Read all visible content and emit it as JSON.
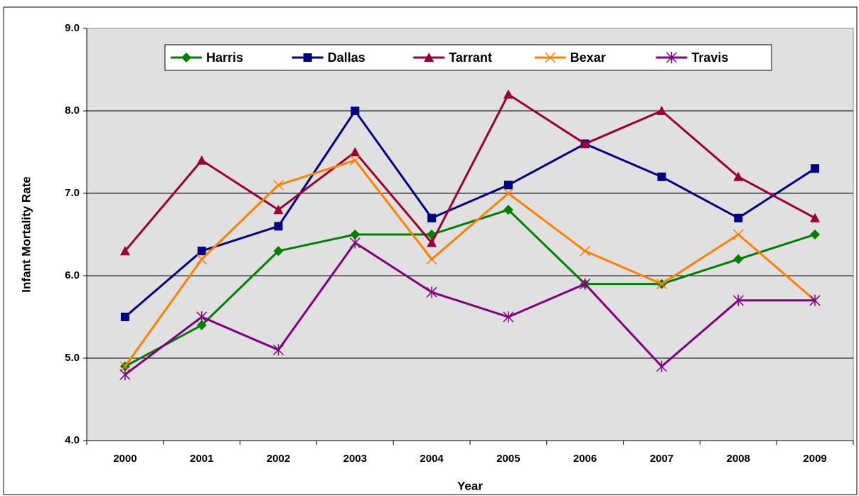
{
  "chart_data": {
    "type": "line",
    "x_label": "Year",
    "y_label": "Infant Mortality Rate",
    "categories": [
      "2000",
      "2001",
      "2002",
      "2003",
      "2004",
      "2005",
      "2006",
      "2007",
      "2008",
      "2009"
    ],
    "series": [
      {
        "name": "Harris",
        "color": "#008000",
        "marker": "diamond",
        "values": [
          4.9,
          5.4,
          6.3,
          6.5,
          6.5,
          6.8,
          5.9,
          5.9,
          6.2,
          6.5
        ]
      },
      {
        "name": "Dallas",
        "color": "#000080",
        "marker": "square",
        "values": [
          5.5,
          6.3,
          6.6,
          8.0,
          6.7,
          7.1,
          7.6,
          7.2,
          6.7,
          7.3
        ]
      },
      {
        "name": "Tarrant",
        "color": "#990033",
        "marker": "triangle",
        "values": [
          6.3,
          7.4,
          6.8,
          7.5,
          6.4,
          8.2,
          7.6,
          8.0,
          7.2,
          6.7
        ]
      },
      {
        "name": "Bexar",
        "color": "#ff8000",
        "marker": "x",
        "values": [
          4.9,
          6.2,
          7.1,
          7.4,
          6.2,
          7.0,
          6.3,
          5.9,
          6.5,
          5.7
        ]
      },
      {
        "name": "Travis",
        "color": "#800080",
        "marker": "star",
        "values": [
          4.8,
          5.5,
          5.1,
          6.4,
          5.8,
          5.5,
          5.9,
          4.9,
          5.7,
          5.7
        ]
      }
    ],
    "ylim": [
      4,
      9
    ],
    "yticks": [
      {
        "value": 4,
        "label": "4.0"
      },
      {
        "value": 5,
        "label": "5.0"
      },
      {
        "value": 6,
        "label": "6.0"
      },
      {
        "value": 7,
        "label": "7.0"
      },
      {
        "value": 8,
        "label": "8.0"
      },
      {
        "value": 9,
        "label": "9.0"
      }
    ],
    "grid": true,
    "legend": "top"
  }
}
